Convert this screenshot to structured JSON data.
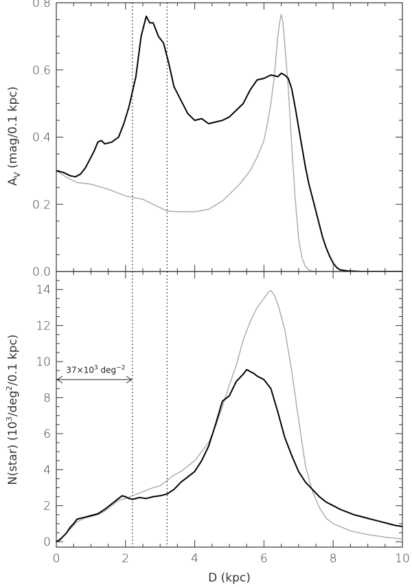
{
  "chart_data": [
    {
      "type": "line",
      "panel": "top",
      "ylabel_main": "A",
      "ylabel_sub": "V",
      "ylabel_rest": " (mag/0.1 kpc)",
      "xlim": [
        0,
        10
      ],
      "ylim": [
        0,
        0.8
      ],
      "yticks": [
        0.0,
        0.2,
        0.4,
        0.6,
        0.8
      ],
      "ytick_labels": [
        "0.0",
        "0.2",
        "0.4",
        "0.6",
        "0.8"
      ],
      "vlines": [
        2.2,
        3.2
      ],
      "series": [
        {
          "color": "#000000",
          "width": 2,
          "x": [
            0,
            0.2,
            0.4,
            0.55,
            0.7,
            0.85,
            1.0,
            1.1,
            1.2,
            1.3,
            1.4,
            1.6,
            1.8,
            1.95,
            2.1,
            2.3,
            2.45,
            2.6,
            2.7,
            2.8,
            2.95,
            3.1,
            3.25,
            3.4,
            3.6,
            3.8,
            4.0,
            4.2,
            4.4,
            4.6,
            4.8,
            5.0,
            5.2,
            5.4,
            5.6,
            5.8,
            6.0,
            6.2,
            6.4,
            6.5,
            6.6,
            6.7,
            6.8,
            6.9,
            7.0,
            7.1,
            7.2,
            7.3,
            7.4,
            7.5,
            7.6,
            7.7,
            7.8,
            7.9,
            8.0,
            8.1,
            8.2,
            8.4,
            8.6,
            8.8,
            9.0,
            10.0
          ],
          "y": [
            0.3,
            0.295,
            0.285,
            0.282,
            0.29,
            0.31,
            0.34,
            0.36,
            0.385,
            0.39,
            0.38,
            0.385,
            0.4,
            0.44,
            0.49,
            0.58,
            0.7,
            0.76,
            0.74,
            0.74,
            0.7,
            0.68,
            0.62,
            0.55,
            0.51,
            0.47,
            0.45,
            0.455,
            0.44,
            0.445,
            0.45,
            0.46,
            0.48,
            0.5,
            0.54,
            0.57,
            0.575,
            0.585,
            0.58,
            0.59,
            0.585,
            0.575,
            0.545,
            0.49,
            0.43,
            0.37,
            0.31,
            0.26,
            0.22,
            0.18,
            0.14,
            0.1,
            0.07,
            0.045,
            0.025,
            0.012,
            0.005,
            0.002,
            0.001,
            0.0,
            0.0,
            0.0
          ]
        },
        {
          "color": "#a8a8a8",
          "width": 1.4,
          "x": [
            0,
            0.3,
            0.6,
            1.0,
            1.5,
            2.0,
            2.5,
            3.0,
            3.2,
            3.5,
            4.0,
            4.4,
            4.8,
            5.0,
            5.3,
            5.6,
            5.8,
            6.0,
            6.1,
            6.2,
            6.3,
            6.35,
            6.4,
            6.45,
            6.5,
            6.55,
            6.6,
            6.7,
            6.8,
            6.9,
            7.0,
            7.1,
            7.2,
            7.3,
            7.4,
            7.5,
            7.6,
            8.0,
            10.0
          ],
          "y": [
            0.3,
            0.28,
            0.265,
            0.26,
            0.245,
            0.225,
            0.215,
            0.19,
            0.18,
            0.178,
            0.178,
            0.185,
            0.21,
            0.23,
            0.26,
            0.3,
            0.34,
            0.39,
            0.44,
            0.5,
            0.58,
            0.64,
            0.7,
            0.74,
            0.765,
            0.74,
            0.68,
            0.55,
            0.38,
            0.22,
            0.1,
            0.04,
            0.015,
            0.005,
            0.001,
            0.0,
            0.0,
            0.0,
            0.0
          ]
        }
      ]
    },
    {
      "type": "line",
      "panel": "bottom",
      "xlabel": "D (kpc)",
      "ylabel_pre": "N(star) (10",
      "ylabel_sup1": "3",
      "ylabel_mid": "/deg",
      "ylabel_sup2": "2",
      "ylabel_post": "/0.1 kpc)",
      "xlim": [
        0,
        10
      ],
      "ylim": [
        -0.3,
        15
      ],
      "xticks": [
        0,
        2,
        4,
        6,
        8,
        10
      ],
      "xtick_labels": [
        "0",
        "2",
        "4",
        "6",
        "8",
        "10"
      ],
      "yticks": [
        0,
        2,
        4,
        6,
        8,
        10,
        12,
        14
      ],
      "ytick_labels": [
        "0",
        "2",
        "4",
        "6",
        "8",
        "10",
        "12",
        "14"
      ],
      "vlines": [
        2.2,
        3.2
      ],
      "annotation": {
        "text_pre": "37×10",
        "text_sup": "3",
        "text_mid": " deg",
        "text_sup2": "−2",
        "x_from": 0,
        "x_to": 2.2,
        "y": 9.0
      },
      "series": [
        {
          "color": "#000000",
          "width": 2,
          "x": [
            0,
            0.1,
            0.2,
            0.3,
            0.4,
            0.5,
            0.6,
            0.8,
            1.0,
            1.2,
            1.4,
            1.6,
            1.8,
            1.9,
            2.0,
            2.1,
            2.2,
            2.4,
            2.6,
            2.8,
            3.0,
            3.2,
            3.4,
            3.6,
            3.8,
            4.0,
            4.2,
            4.4,
            4.6,
            4.8,
            5.0,
            5.2,
            5.4,
            5.5,
            5.6,
            5.7,
            5.8,
            6.0,
            6.2,
            6.4,
            6.6,
            6.8,
            7.0,
            7.2,
            7.4,
            7.6,
            7.8,
            8.0,
            8.2,
            8.4,
            8.6,
            8.8,
            9.0,
            9.2,
            9.4,
            9.6,
            9.8,
            10.0
          ],
          "y": [
            0.0,
            0.1,
            0.3,
            0.5,
            0.8,
            1.0,
            1.25,
            1.35,
            1.45,
            1.55,
            1.8,
            2.1,
            2.4,
            2.55,
            2.5,
            2.4,
            2.35,
            2.45,
            2.4,
            2.5,
            2.55,
            2.65,
            2.9,
            3.3,
            3.6,
            3.9,
            4.5,
            5.3,
            6.5,
            7.8,
            8.1,
            8.9,
            9.3,
            9.55,
            9.45,
            9.35,
            9.2,
            9.0,
            8.5,
            7.2,
            5.8,
            4.8,
            3.9,
            3.3,
            2.9,
            2.5,
            2.2,
            2.0,
            1.8,
            1.65,
            1.5,
            1.4,
            1.3,
            1.2,
            1.1,
            1.0,
            0.9,
            0.85
          ]
        },
        {
          "color": "#a8a8a8",
          "width": 1.4,
          "x": [
            0,
            0.2,
            0.4,
            0.6,
            0.8,
            1.0,
            1.2,
            1.4,
            1.6,
            1.8,
            2.0,
            2.2,
            2.4,
            2.6,
            2.8,
            3.0,
            3.2,
            3.4,
            3.6,
            3.8,
            4.0,
            4.2,
            4.4,
            4.6,
            4.8,
            5.0,
            5.2,
            5.4,
            5.6,
            5.8,
            6.0,
            6.1,
            6.2,
            6.3,
            6.4,
            6.6,
            6.8,
            7.0,
            7.2,
            7.4,
            7.6,
            7.8,
            8.0,
            8.5,
            9.0,
            9.5,
            10.0
          ],
          "y": [
            0.0,
            0.3,
            0.7,
            1.1,
            1.3,
            1.4,
            1.5,
            1.7,
            2.0,
            2.3,
            2.4,
            2.55,
            2.7,
            2.85,
            3.0,
            3.1,
            3.4,
            3.7,
            3.9,
            4.2,
            4.5,
            5.0,
            5.5,
            6.4,
            7.5,
            8.7,
            9.8,
            11.2,
            12.2,
            13.0,
            13.5,
            13.8,
            13.95,
            13.7,
            13.2,
            11.8,
            9.5,
            6.8,
            4.2,
            2.8,
            1.9,
            1.3,
            1.0,
            0.6,
            0.4,
            0.25,
            0.15
          ]
        }
      ]
    }
  ]
}
